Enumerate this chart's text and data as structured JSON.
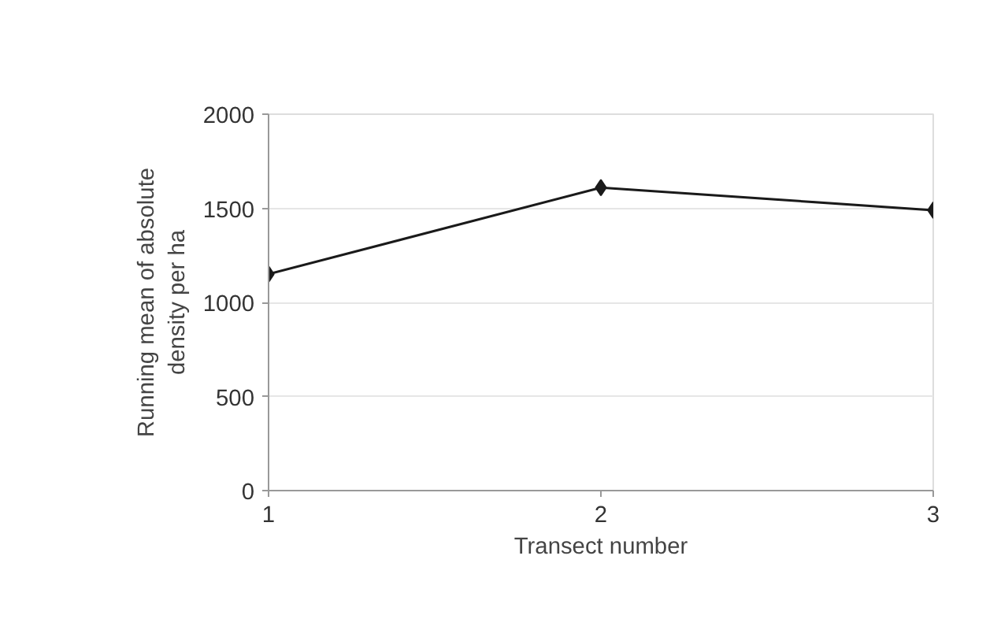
{
  "chart_data": {
    "type": "line",
    "xlabel": "Transect number",
    "ylabel": "Running mean of absolute density per ha",
    "x": [
      1,
      2,
      3
    ],
    "series": [
      {
        "color": "#1a1a1a",
        "values": [
          1150,
          1610,
          1490
        ]
      }
    ],
    "xlim": [
      1,
      3
    ],
    "xticks": [
      1,
      2,
      3
    ],
    "ylim": [
      0,
      2000
    ],
    "yticks": [
      0,
      500,
      1000,
      1500,
      2000
    ],
    "grid": "y",
    "marker": "diamond",
    "line_style": "solid"
  }
}
